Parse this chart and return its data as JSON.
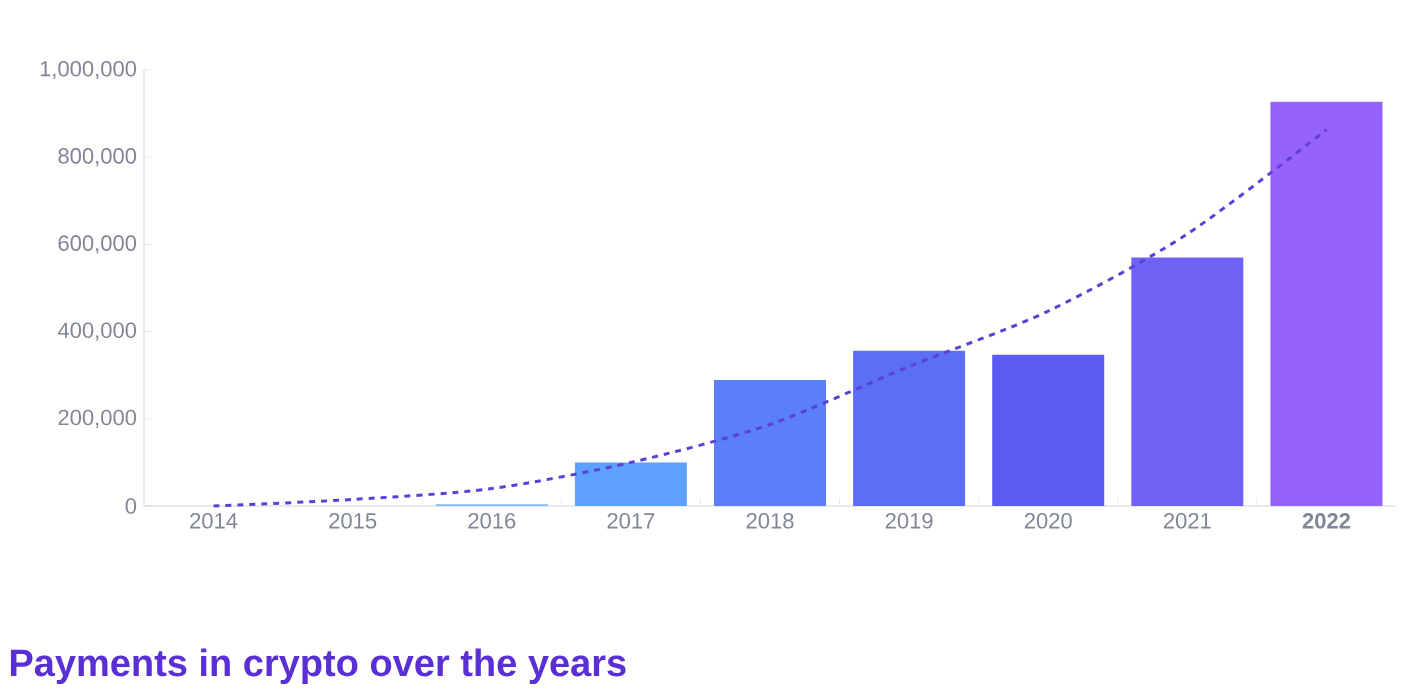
{
  "chart_data": {
    "type": "bar",
    "title": "Payments in crypto over the years",
    "categories": [
      "2014",
      "2015",
      "2016",
      "2017",
      "2018",
      "2019",
      "2020",
      "2021",
      "**2022**"
    ],
    "series": [
      {
        "colors": [
          "#7fb8ff",
          "#7fb8ff",
          "#7fb8ff",
          "#5ea1ff",
          "#5b7ef9",
          "#5a6ff5",
          "#5b5bf3",
          "#6e62f5",
          "#9563fb"
        ],
        "values": [
          0,
          0,
          4000,
          100000,
          289000,
          356000,
          347000,
          570000,
          927000
        ]
      },
      {
        "type": "line",
        "color": "#5b3fd6",
        "values": [
          0,
          15000,
          40000,
          100000,
          187000,
          320000,
          447000,
          624000,
          863000
        ]
      }
    ],
    "line_style": "dashed",
    "ylim": [
      0,
      1000000
    ],
    "yticks": [
      0,
      {
        "value": 200000,
        "label": "200,000"
      },
      {
        "value": 400000,
        "label": "400,000"
      },
      {
        "value": 600000,
        "label": "600,000"
      },
      {
        "value": 800000,
        "label": "800,000"
      },
      {
        "value": 1000000,
        "label": "1,000,000"
      }
    ],
    "grid": false
  }
}
